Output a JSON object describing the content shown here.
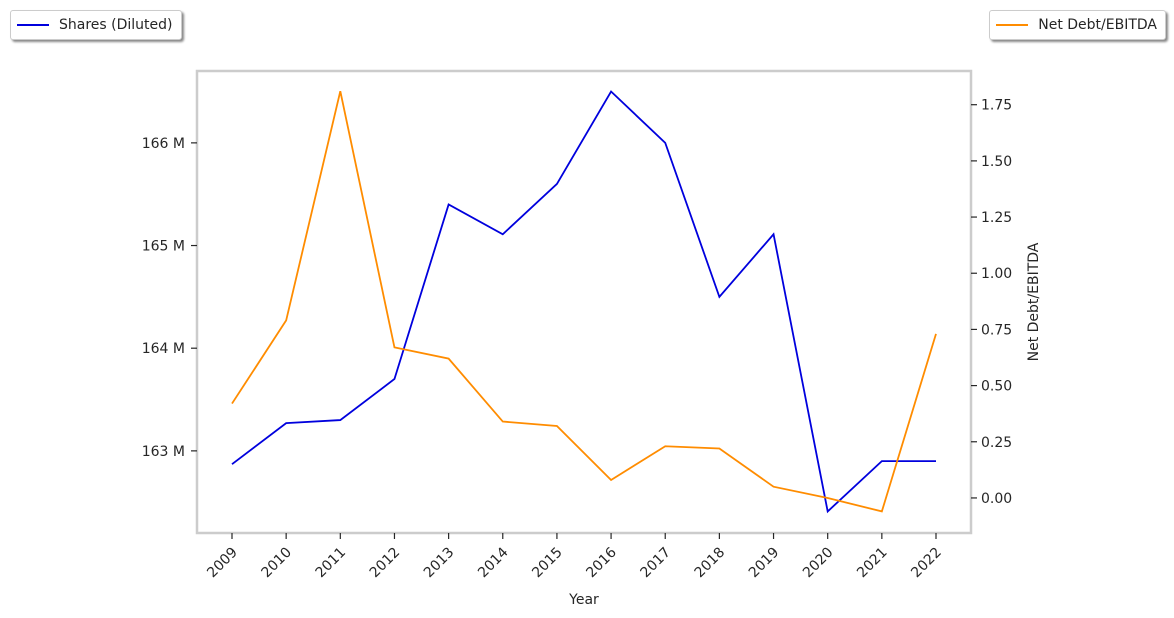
{
  "chart_data": {
    "type": "line",
    "x_label": "Year",
    "y2_label": "Net Debt/EBITDA",
    "categories": [
      "2009",
      "2010",
      "2011",
      "2012",
      "2013",
      "2014",
      "2015",
      "2016",
      "2017",
      "2018",
      "2019",
      "2020",
      "2021",
      "2022"
    ],
    "series": [
      {
        "name": "Shares (Diluted)",
        "color": "#0000dd",
        "axis": "y",
        "values": [
          162.87,
          163.27,
          163.3,
          163.7,
          165.4,
          165.11,
          165.6,
          166.5,
          166.0,
          164.5,
          165.11,
          162.41,
          162.9,
          162.9
        ]
      },
      {
        "name": "Net Debt/EBITDA",
        "color": "#ff8c00",
        "axis": "y2",
        "values": [
          0.42,
          0.79,
          1.81,
          0.67,
          0.62,
          0.34,
          0.32,
          0.08,
          0.23,
          0.22,
          0.05,
          0.0,
          -0.06,
          0.73
        ]
      }
    ],
    "ylim": [
      162.2,
      166.7
    ],
    "yticks": [
      {
        "value": 163,
        "label": "163 M"
      },
      {
        "value": 164,
        "label": "164 M"
      },
      {
        "value": 165,
        "label": "165 M"
      },
      {
        "value": 166,
        "label": "166 M"
      }
    ],
    "y2lim": [
      -0.156,
      1.9
    ],
    "y2ticks": [
      {
        "value": 0,
        "label": "0.00"
      },
      {
        "value": 0.25,
        "label": "0.25"
      },
      {
        "value": 0.5,
        "label": "0.50"
      },
      {
        "value": 0.75,
        "label": "0.75"
      },
      {
        "value": 1,
        "label": "1.00"
      },
      {
        "value": 1.25,
        "label": "1.25"
      },
      {
        "value": 1.5,
        "label": "1.50"
      },
      {
        "value": 1.75,
        "label": "1.75"
      }
    ],
    "grid": false
  }
}
